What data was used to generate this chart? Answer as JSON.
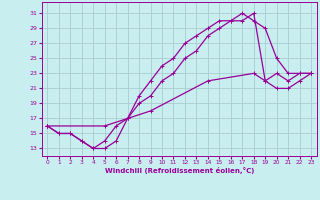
{
  "xlabel": "Windchill (Refroidissement éolien,°C)",
  "bg_color": "#c8eef0",
  "grid_color": "#aaccd0",
  "line_color": "#990099",
  "xlim": [
    -0.5,
    23.5
  ],
  "ylim": [
    12.0,
    32.5
  ],
  "xticks": [
    0,
    1,
    2,
    3,
    4,
    5,
    6,
    7,
    8,
    9,
    10,
    11,
    12,
    13,
    14,
    15,
    16,
    17,
    18,
    19,
    20,
    21,
    22,
    23
  ],
  "yticks": [
    13,
    15,
    17,
    19,
    21,
    23,
    25,
    27,
    29,
    31
  ],
  "line1_x": [
    0,
    1,
    2,
    3,
    4,
    5,
    6,
    7,
    8,
    9,
    10,
    11,
    12,
    13,
    14,
    15,
    16,
    17,
    18,
    19,
    20,
    21,
    22,
    23
  ],
  "line1_y": [
    16,
    15,
    15,
    14,
    13,
    13,
    14,
    17,
    20,
    22,
    24,
    25,
    27,
    28,
    29,
    30,
    30,
    31,
    30,
    29,
    25,
    23,
    23,
    23
  ],
  "line2_x": [
    0,
    1,
    2,
    3,
    4,
    5,
    6,
    7,
    8,
    9,
    10,
    11,
    12,
    13,
    14,
    15,
    16,
    17,
    18,
    19,
    20,
    21,
    22,
    23
  ],
  "line2_y": [
    16,
    15,
    15,
    14,
    13,
    14,
    16,
    17,
    19,
    20,
    22,
    23,
    25,
    26,
    28,
    29,
    30,
    30,
    31,
    22,
    21,
    21,
    22,
    23
  ],
  "line3_x": [
    0,
    5,
    9,
    14,
    18,
    19,
    20,
    21,
    22,
    23
  ],
  "line3_y": [
    16,
    16,
    18,
    22,
    23,
    22,
    23,
    22,
    23,
    23
  ],
  "marker": "+",
  "markersize": 3.5,
  "linewidth": 0.9
}
